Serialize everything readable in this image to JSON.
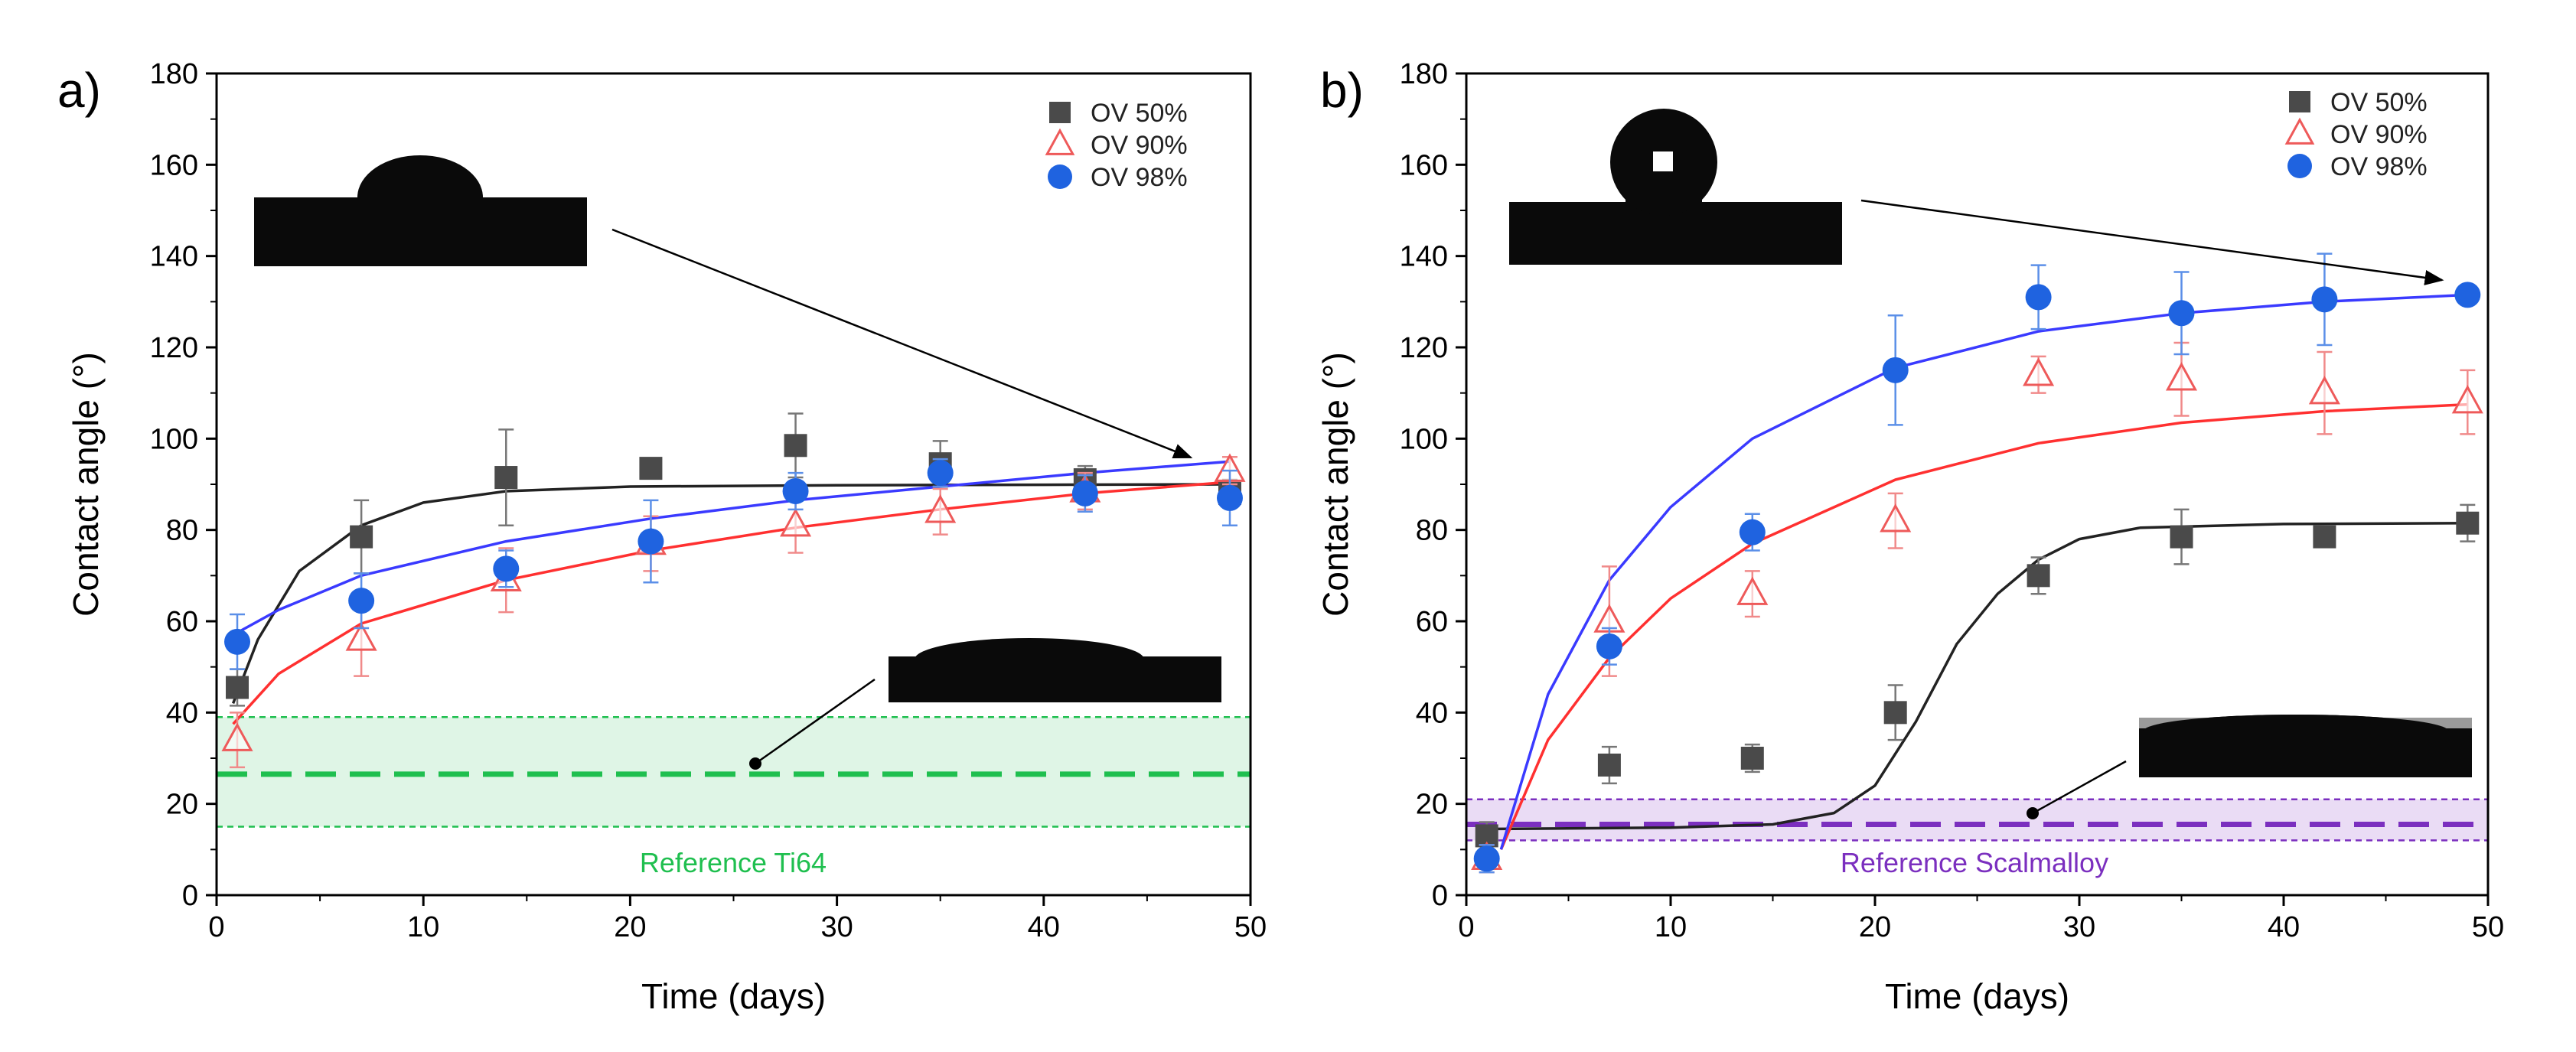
{
  "figure": {
    "panels": [
      {
        "panel_label": "a)",
        "reference_label": "Reference Ti64",
        "reference_color": "#1fbf4f",
        "reference_fill": "#dff5e6"
      },
      {
        "panel_label": "b)",
        "reference_label": "Reference Scalmalloy",
        "reference_color": "#7b2fbf",
        "reference_fill": "#eadcf5"
      }
    ]
  },
  "chart_data": [
    {
      "type": "scatter",
      "panel": "a)",
      "xlabel": "Time (days)",
      "ylabel": "Contact angle (°)",
      "xlim": [
        0,
        50
      ],
      "ylim": [
        0,
        180
      ],
      "xticks": [
        0,
        10,
        20,
        30,
        40,
        50
      ],
      "yticks": [
        0,
        20,
        40,
        60,
        80,
        100,
        120,
        140,
        160,
        180
      ],
      "grid": false,
      "legend_position": "top-right",
      "series": [
        {
          "name": "OV 50%",
          "marker": "square",
          "color": "#4a4a4a",
          "x": [
            1,
            7,
            14,
            21,
            28,
            35,
            42,
            49
          ],
          "y": [
            45.5,
            78.5,
            91.5,
            93.5,
            98.5,
            94.5,
            91,
            88
          ],
          "err": [
            4,
            8,
            10.5,
            2,
            7,
            5,
            3,
            3
          ],
          "fit": [
            [
              0.8,
              42
            ],
            [
              2,
              56
            ],
            [
              4,
              71
            ],
            [
              7,
              81
            ],
            [
              10,
              86
            ],
            [
              14,
              88.5
            ],
            [
              20,
              89.5
            ],
            [
              30,
              89.8
            ],
            [
              40,
              89.9
            ],
            [
              49,
              90
            ]
          ]
        },
        {
          "name": "OV 90%",
          "marker": "triangle-open",
          "color": "#ee5a5a",
          "x": [
            1,
            7,
            14,
            21,
            28,
            35,
            42,
            49
          ],
          "y": [
            34,
            56,
            69,
            77,
            81,
            84,
            88.5,
            93
          ],
          "err": [
            6,
            8,
            7,
            6,
            6,
            5,
            4,
            3
          ],
          "fit": [
            [
              0.8,
              37.5
            ],
            [
              3,
              48.5
            ],
            [
              7,
              59.5
            ],
            [
              14,
              69
            ],
            [
              21,
              75.5
            ],
            [
              28,
              80.5
            ],
            [
              35,
              84.5
            ],
            [
              42,
              88
            ],
            [
              49,
              90.5
            ]
          ]
        },
        {
          "name": "OV 98%",
          "marker": "circle",
          "color": "#1f63e0",
          "x": [
            1,
            7,
            14,
            21,
            28,
            35,
            42,
            49
          ],
          "y": [
            55.5,
            64.5,
            71.5,
            77.5,
            88.5,
            92.5,
            88,
            87
          ],
          "err": [
            6,
            6,
            4,
            9,
            4,
            3,
            4,
            6
          ],
          "fit": [
            [
              0.8,
              57
            ],
            [
              3,
              62.5
            ],
            [
              7,
              70
            ],
            [
              14,
              77.5
            ],
            [
              21,
              82.5
            ],
            [
              28,
              86.5
            ],
            [
              35,
              89.5
            ],
            [
              42,
              92.5
            ],
            [
              49,
              95
            ]
          ]
        }
      ],
      "reference": {
        "label": "Reference Ti64",
        "mean": 26.5,
        "lower": 15,
        "upper": 39
      }
    },
    {
      "type": "scatter",
      "panel": "b)",
      "xlabel": "Time (days)",
      "ylabel": "Contact angle (°)",
      "xlim": [
        0,
        50
      ],
      "ylim": [
        0,
        180
      ],
      "xticks": [
        0,
        10,
        20,
        30,
        40,
        50
      ],
      "yticks": [
        0,
        20,
        40,
        60,
        80,
        100,
        120,
        140,
        160,
        180
      ],
      "grid": false,
      "legend_position": "top-right",
      "series": [
        {
          "name": "OV 50%",
          "marker": "square",
          "color": "#4a4a4a",
          "x": [
            1,
            7,
            14,
            21,
            28,
            35,
            42,
            49
          ],
          "y": [
            13,
            28.5,
            30,
            40,
            70,
            78.5,
            78.5,
            81.5
          ],
          "err": [
            3,
            4,
            3,
            6,
            4,
            6,
            2,
            4
          ],
          "fit": [
            [
              1,
              14.5
            ],
            [
              10,
              14.8
            ],
            [
              15,
              15.5
            ],
            [
              18,
              18
            ],
            [
              20,
              24
            ],
            [
              22,
              38
            ],
            [
              24,
              55
            ],
            [
              26,
              66
            ],
            [
              28,
              73.5
            ],
            [
              30,
              78
            ],
            [
              33,
              80.5
            ],
            [
              40,
              81.3
            ],
            [
              49,
              81.5
            ]
          ]
        },
        {
          "name": "OV 90%",
          "marker": "triangle-open",
          "color": "#ee5a5a",
          "x": [
            1,
            7,
            14,
            21,
            28,
            35,
            42,
            49
          ],
          "y": [
            8,
            60,
            66,
            82,
            114,
            113,
            110,
            108
          ],
          "err": [
            3,
            12,
            5,
            6,
            4,
            8,
            9,
            7
          ],
          "fit": [
            [
              1.7,
              10
            ],
            [
              4,
              34
            ],
            [
              7,
              52
            ],
            [
              10,
              65
            ],
            [
              14,
              77
            ],
            [
              21,
              91
            ],
            [
              28,
              99
            ],
            [
              35,
              103.5
            ],
            [
              42,
              106
            ],
            [
              49,
              107.5
            ]
          ]
        },
        {
          "name": "OV 98%",
          "marker": "circle",
          "color": "#1f63e0",
          "x": [
            1,
            7,
            14,
            21,
            28,
            35,
            42,
            49
          ],
          "y": [
            8,
            54.5,
            79.5,
            115,
            131,
            127.5,
            130.5,
            131.5
          ],
          "err": [
            3,
            4,
            4,
            12,
            7,
            9,
            10,
            2
          ],
          "fit": [
            [
              1.7,
              10
            ],
            [
              4,
              44
            ],
            [
              7,
              69
            ],
            [
              10,
              85
            ],
            [
              14,
              100
            ],
            [
              21,
              115.5
            ],
            [
              28,
              123.5
            ],
            [
              35,
              127.5
            ],
            [
              42,
              130
            ],
            [
              49,
              131.5
            ]
          ]
        }
      ],
      "reference": {
        "label": "Reference Scalmalloy",
        "mean": 15.5,
        "lower": 12,
        "upper": 21
      }
    }
  ]
}
